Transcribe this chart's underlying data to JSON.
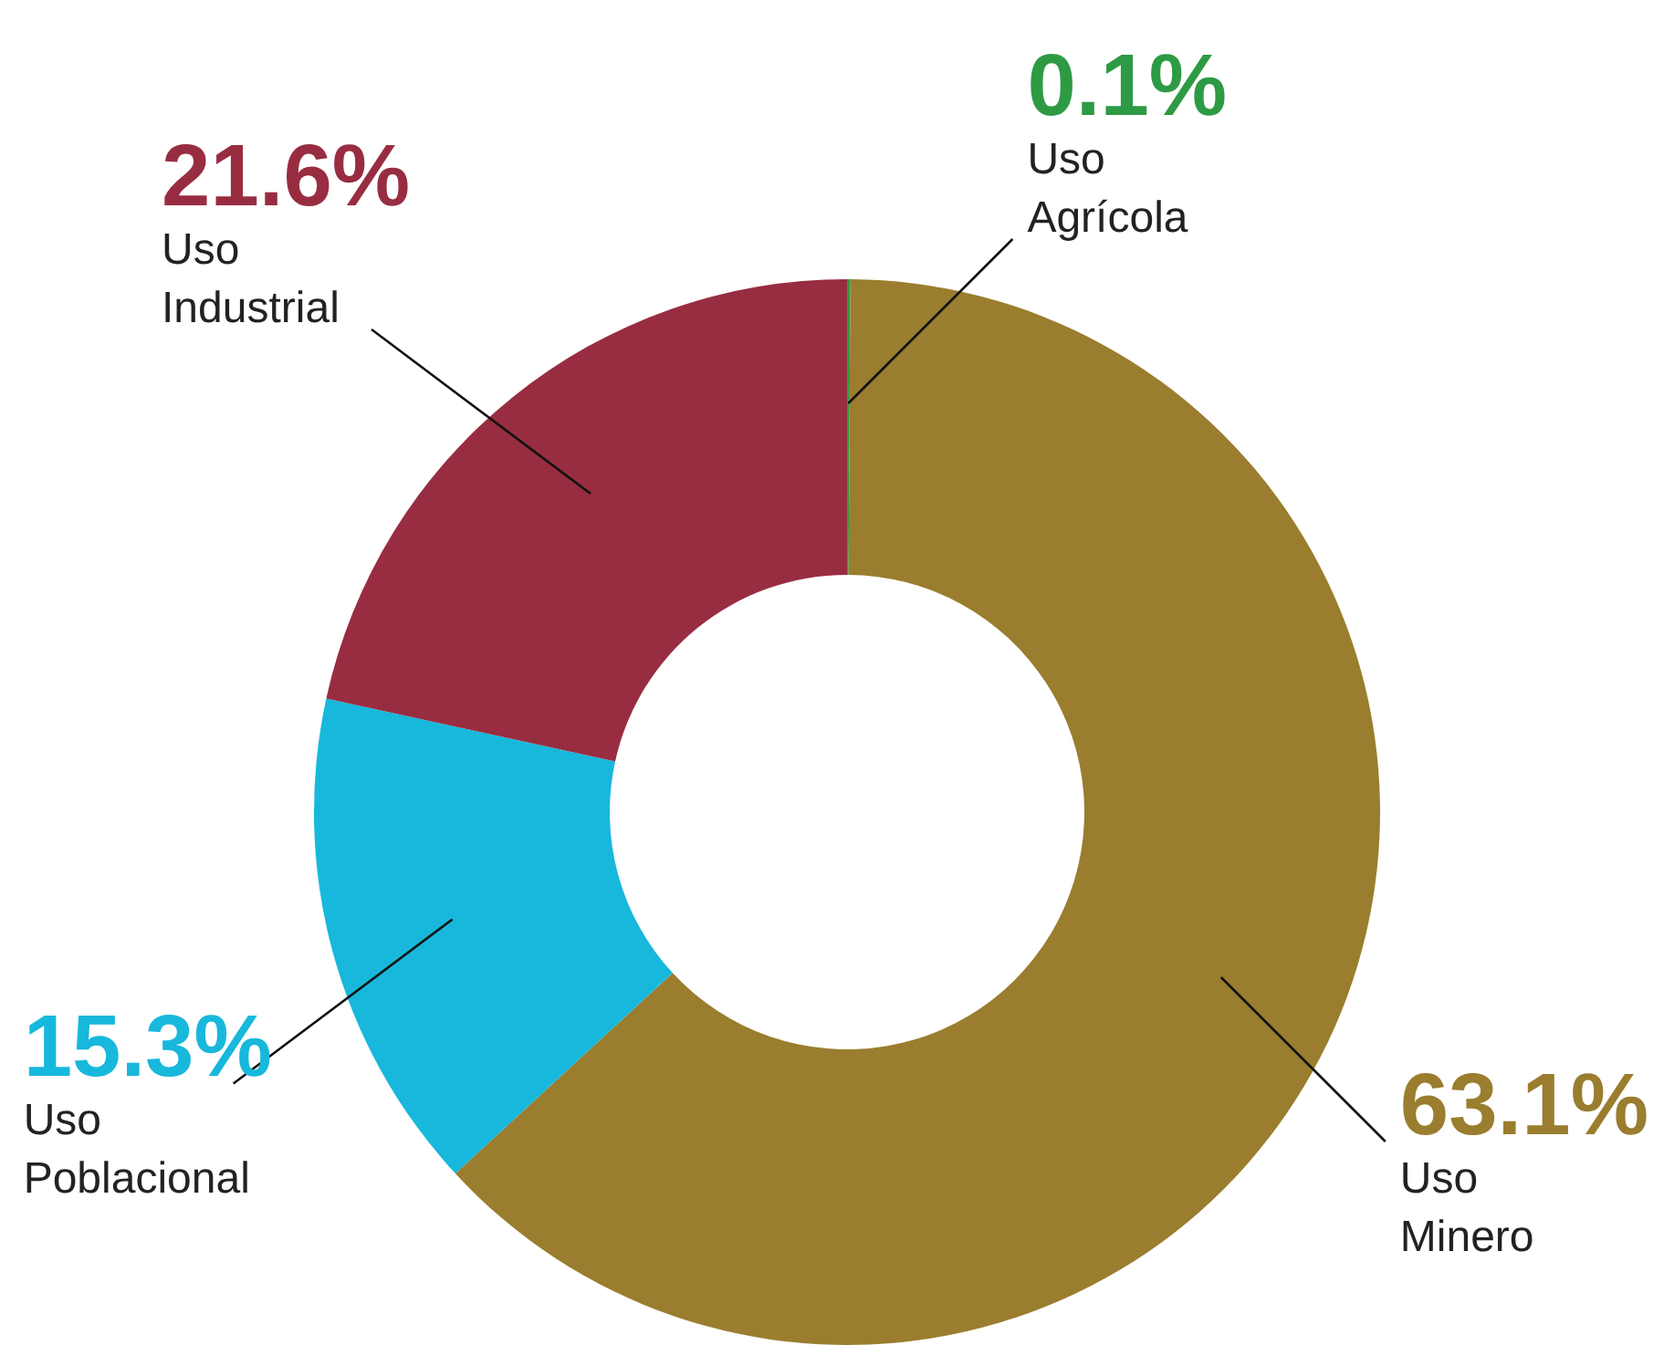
{
  "chart_data": {
    "type": "donut",
    "categories": [
      "Uso Agrícola",
      "Uso Minero",
      "Uso Poblacional",
      "Uso Industrial"
    ],
    "values": [
      0.1,
      63.1,
      15.3,
      21.6
    ],
    "colors": [
      "#2e9a44",
      "#9a7d2e",
      "#17b8dc",
      "#982d41"
    ],
    "value_labels": [
      "0.1%",
      "63.1%",
      "15.3%",
      "21.6%"
    ]
  }
}
